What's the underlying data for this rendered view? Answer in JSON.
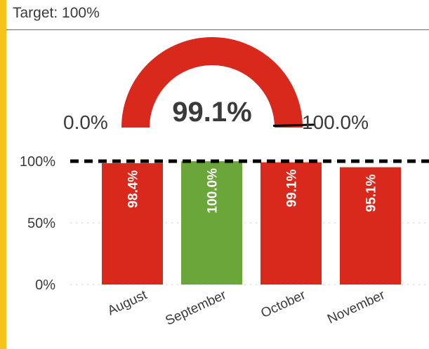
{
  "header": {
    "title": "Target: 100%"
  },
  "colors": {
    "accent": "#f6c21c",
    "below_target": "#d9291c",
    "at_target": "#6aa63a"
  },
  "gauge": {
    "value": 99.1,
    "min_label": "0.0%",
    "max_label": "100.0%",
    "value_label": "99.1%"
  },
  "chart_data": {
    "type": "bar",
    "categories": [
      "August",
      "September",
      "October",
      "November"
    ],
    "values": [
      98.4,
      100.0,
      99.1,
      95.1
    ],
    "value_labels": [
      "98.4%",
      "100.0%",
      "99.1%",
      "95.1%"
    ],
    "target": 100,
    "ylim": [
      0,
      100
    ],
    "ytick_values": [
      0,
      50,
      100
    ],
    "ytick_labels": [
      "0%",
      "50%",
      "100%"
    ],
    "grid": true
  }
}
